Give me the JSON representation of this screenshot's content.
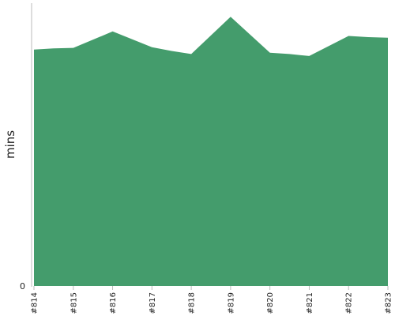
{
  "chart_data": {
    "type": "area",
    "title": "",
    "xlabel": "",
    "ylabel": "mins",
    "categories": [
      "#814",
      "#815",
      "#816",
      "#817",
      "#818",
      "#819",
      "#820",
      "#821",
      "#822",
      "#823"
    ],
    "x": [
      814.0,
      814.5,
      815.0,
      816.0,
      817.0,
      817.5,
      818.0,
      819.0,
      820.0,
      820.5,
      821.0,
      822.0,
      822.5,
      823.0
    ],
    "series": [
      {
        "values": [
          83.6,
          84.0,
          84.2,
          90.0,
          84.4,
          83.1,
          82.0,
          95.2,
          82.5,
          82.0,
          81.3,
          88.4,
          88.0,
          87.8
        ]
      }
    ],
    "ylim": [
      0,
      100
    ],
    "y_ticks": [
      "0"
    ],
    "grid": false,
    "legend": "none",
    "fill_color": "#449c6c"
  }
}
